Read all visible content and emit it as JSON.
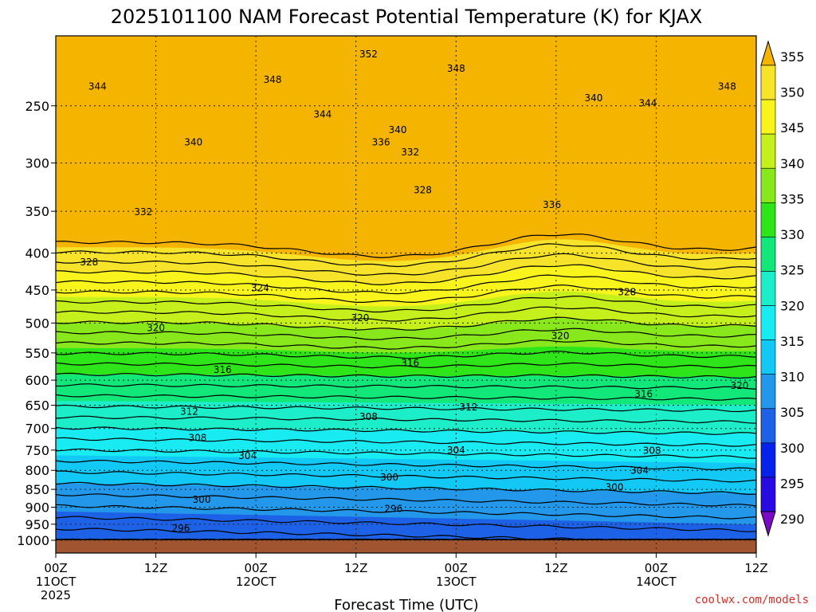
{
  "chart_data": {
    "type": "heatmap",
    "title": "2025101100 NAM Forecast Potential Temperature (K) for KJAX",
    "xlabel": "Forecast Time (UTC)",
    "ylabel": "",
    "x_hours_range": [
      0,
      84
    ],
    "y_pressure_range": [
      1000,
      200
    ],
    "y_ticks": [
      "250",
      "300",
      "350",
      "400",
      "450",
      "500",
      "550",
      "600",
      "650",
      "700",
      "750",
      "800",
      "850",
      "900",
      "950",
      "1000"
    ],
    "x_ticks": [
      {
        "hour": 0,
        "line1": "00Z",
        "line2": "11OCT",
        "line3": "2025"
      },
      {
        "hour": 12,
        "line1": "12Z",
        "line2": "",
        "line3": ""
      },
      {
        "hour": 24,
        "line1": "00Z",
        "line2": "12OCT",
        "line3": ""
      },
      {
        "hour": 36,
        "line1": "12Z",
        "line2": "",
        "line3": ""
      },
      {
        "hour": 48,
        "line1": "00Z",
        "line2": "13OCT",
        "line3": ""
      },
      {
        "hour": 60,
        "line1": "12Z",
        "line2": "",
        "line3": ""
      },
      {
        "hour": 72,
        "line1": "00Z",
        "line2": "14OCT",
        "line3": ""
      },
      {
        "hour": 84,
        "line1": "12Z",
        "line2": "",
        "line3": ""
      }
    ],
    "colorbar": {
      "levels": [
        "355",
        "350",
        "345",
        "340",
        "335",
        "330",
        "325",
        "320",
        "315",
        "310",
        "305",
        "300",
        "295",
        "290"
      ],
      "colors": [
        "#f5b400",
        "#f7e32a",
        "#f9f51c",
        "#c6f01c",
        "#88e81c",
        "#2ee51a",
        "#12e87a",
        "#1ceec9",
        "#19ebf2",
        "#12c8f5",
        "#2398ea",
        "#1d62e6",
        "#0622ea",
        "#2a0ae4",
        "#7a0ac8"
      ]
    },
    "contour_labels": [
      {
        "value": "352",
        "h": 37.5,
        "p": 212
      },
      {
        "value": "348",
        "h": 26,
        "p": 230
      },
      {
        "value": "348",
        "h": 48,
        "p": 222
      },
      {
        "value": "348",
        "h": 80.5,
        "p": 235
      },
      {
        "value": "344",
        "h": 5,
        "p": 235
      },
      {
        "value": "344",
        "h": 32,
        "p": 257
      },
      {
        "value": "344",
        "h": 71,
        "p": 248
      },
      {
        "value": "340",
        "h": 64.5,
        "p": 244
      },
      {
        "value": "340",
        "h": 16.5,
        "p": 281
      },
      {
        "value": "340",
        "h": 41,
        "p": 270
      },
      {
        "value": "336",
        "h": 39,
        "p": 281
      },
      {
        "value": "336",
        "h": 59.5,
        "p": 343
      },
      {
        "value": "332",
        "h": 42.5,
        "p": 290
      },
      {
        "value": "332",
        "h": 10.5,
        "p": 351
      },
      {
        "value": "328",
        "h": 44,
        "p": 327
      },
      {
        "value": "328",
        "h": 4,
        "p": 412
      },
      {
        "value": "328",
        "h": 68.5,
        "p": 453
      },
      {
        "value": "324",
        "h": 24.5,
        "p": 447
      },
      {
        "value": "320",
        "h": 36.5,
        "p": 492
      },
      {
        "value": "320",
        "h": 12,
        "p": 508
      },
      {
        "value": "320",
        "h": 60.5,
        "p": 521
      },
      {
        "value": "320",
        "h": 82,
        "p": 611
      },
      {
        "value": "316",
        "h": 20,
        "p": 580
      },
      {
        "value": "316",
        "h": 42.5,
        "p": 568
      },
      {
        "value": "316",
        "h": 70.5,
        "p": 627
      },
      {
        "value": "312",
        "h": 16,
        "p": 663
      },
      {
        "value": "312",
        "h": 49.5,
        "p": 654
      },
      {
        "value": "308",
        "h": 37.5,
        "p": 674
      },
      {
        "value": "308",
        "h": 17,
        "p": 721
      },
      {
        "value": "308",
        "h": 71.5,
        "p": 751
      },
      {
        "value": "304",
        "h": 23,
        "p": 764
      },
      {
        "value": "304",
        "h": 48,
        "p": 750
      },
      {
        "value": "304",
        "h": 70,
        "p": 801
      },
      {
        "value": "300",
        "h": 40,
        "p": 818
      },
      {
        "value": "300",
        "h": 17.5,
        "p": 878
      },
      {
        "value": "300",
        "h": 67,
        "p": 844
      },
      {
        "value": "296",
        "h": 40.5,
        "p": 904
      },
      {
        "value": "296",
        "h": 15,
        "p": 963
      }
    ]
  },
  "credit": "coolwx.com/models"
}
